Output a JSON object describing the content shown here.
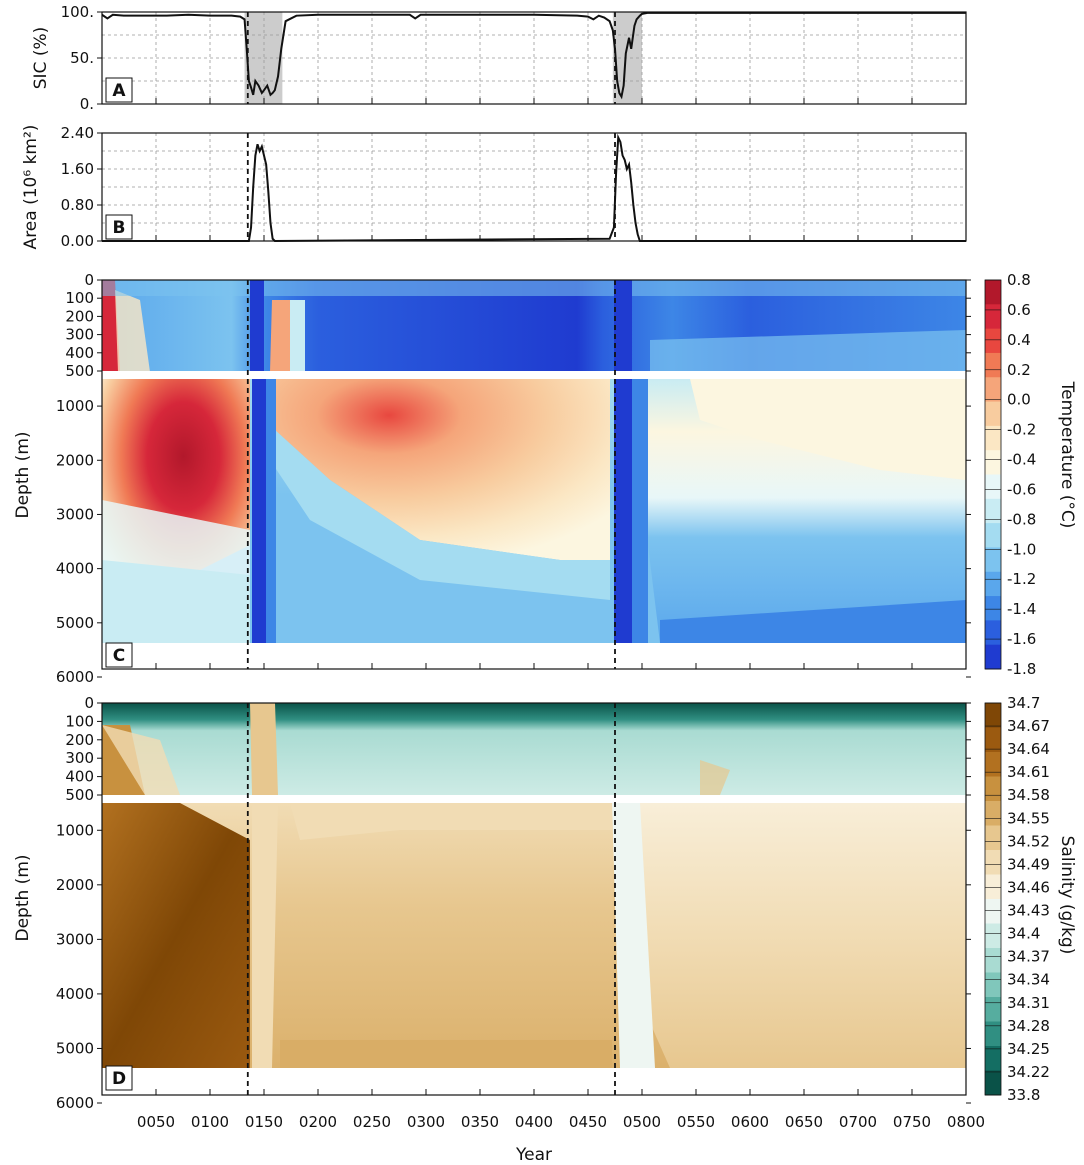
{
  "figure": {
    "x_axis_label": "Year",
    "x_ticks": [
      50,
      100,
      150,
      200,
      250,
      300,
      350,
      400,
      450,
      500,
      550,
      600,
      650,
      700,
      750,
      800
    ],
    "x_tick_labels": [
      "0050",
      "0100",
      "0150",
      "0200",
      "0250",
      "0300",
      "0350",
      "0400",
      "0450",
      "0500",
      "0550",
      "0600",
      "0650",
      "0700",
      "0750",
      "0800"
    ],
    "event_lines_year": [
      135,
      475
    ]
  },
  "chart_data": [
    {
      "type": "line",
      "panel": "A",
      "ylabel": "SIC (%)",
      "y_tick_labels": [
        "100.",
        "50.",
        "0."
      ],
      "ylim": [
        0,
        100
      ],
      "xlim": [
        0,
        800
      ],
      "grid": true,
      "shaded_ranges": [
        [
          132,
          167
        ],
        [
          473,
          500
        ]
      ],
      "x": [
        0,
        5,
        10,
        20,
        40,
        60,
        80,
        100,
        120,
        128,
        132,
        134,
        136,
        138,
        140,
        142,
        145,
        148,
        150,
        153,
        156,
        158,
        160,
        163,
        166,
        170,
        175,
        180,
        200,
        250,
        285,
        290,
        295,
        300,
        350,
        400,
        440,
        450,
        455,
        460,
        465,
        470,
        473,
        475,
        477,
        479,
        481,
        483,
        485,
        488,
        490,
        493,
        495,
        498,
        500,
        505,
        550,
        600,
        700,
        800
      ],
      "values": [
        97,
        93,
        97,
        96,
        96,
        96,
        97,
        96,
        96,
        95,
        92,
        60,
        25,
        18,
        10,
        25,
        20,
        12,
        15,
        20,
        10,
        12,
        15,
        30,
        60,
        90,
        93,
        96,
        97,
        97,
        97,
        93,
        97,
        97,
        97,
        97,
        96,
        95,
        92,
        96,
        94,
        90,
        80,
        60,
        25,
        12,
        8,
        20,
        55,
        72,
        60,
        85,
        92,
        96,
        98,
        99,
        99,
        99,
        99,
        99
      ]
    },
    {
      "type": "line",
      "panel": "B",
      "ylabel": "Area (10⁶ km²)",
      "y_tick_labels": [
        "2.40",
        "1.60",
        "0.80",
        "0.00"
      ],
      "ylim": [
        0,
        2.4
      ],
      "xlim": [
        0,
        800
      ],
      "grid": true,
      "x": [
        0,
        136,
        138,
        140,
        142,
        144,
        146,
        148,
        150,
        152,
        154,
        156,
        158,
        160,
        470,
        474,
        476,
        478,
        480,
        482,
        484,
        486,
        488,
        490,
        492,
        494,
        496,
        498,
        800
      ],
      "values": [
        0,
        0,
        0.3,
        1.2,
        1.9,
        2.15,
        2.0,
        2.1,
        1.9,
        1.7,
        1.1,
        0.4,
        0.05,
        0,
        0.05,
        0.3,
        1.5,
        2.3,
        2.2,
        1.9,
        1.8,
        1.6,
        1.7,
        1.3,
        0.8,
        0.4,
        0.15,
        0,
        0
      ]
    },
    {
      "type": "heatmap",
      "panel": "C",
      "xlabel": "",
      "ylabel": "Depth (m)",
      "y_tick_labels_upper": [
        "0",
        "100",
        "200",
        "300",
        "400",
        "500"
      ],
      "y_tick_labels_lower": [
        "1000",
        "2000",
        "3000",
        "4000",
        "5000",
        "6000"
      ],
      "colorbar_label": "Temperature (°C)",
      "colorbar_ticks": [
        "0.8",
        "0.6",
        "0.4",
        "0.2",
        "0.0",
        "-0.2",
        "-0.4",
        "-0.6",
        "-0.8",
        "-1.0",
        "-1.2",
        "-1.4",
        "-1.6",
        "-1.8"
      ],
      "range": [
        -1.8,
        0.8
      ]
    },
    {
      "type": "heatmap",
      "panel": "D",
      "xlabel": "Year",
      "ylabel": "Depth (m)",
      "y_tick_labels_upper": [
        "0",
        "100",
        "200",
        "300",
        "400",
        "500"
      ],
      "y_tick_labels_lower": [
        "1000",
        "2000",
        "3000",
        "4000",
        "5000",
        "6000"
      ],
      "colorbar_label": "Salinity (g/kg)",
      "colorbar_ticks": [
        "34.7",
        "34.67",
        "34.64",
        "34.61",
        "34.58",
        "34.55",
        "34.52",
        "34.49",
        "34.46",
        "34.43",
        "34.4",
        "34.37",
        "34.34",
        "34.31",
        "34.28",
        "34.25",
        "34.22",
        "33.8"
      ],
      "range": [
        33.8,
        34.7
      ]
    }
  ],
  "colors": {
    "shade": "#cccccc",
    "temp_scale": [
      "#b2182b",
      "#d6273a",
      "#e8473f",
      "#f07a55",
      "#f5a57a",
      "#f8cc9f",
      "#fbe7c4",
      "#fcf6e0",
      "#e8f7f8",
      "#c9ecf3",
      "#a4dcf1",
      "#7cc3ef",
      "#5aa7ec",
      "#3d86e6",
      "#2b5fde",
      "#1f3bd0"
    ],
    "sal_scale": [
      "#7f4706",
      "#9b5a10",
      "#b27120",
      "#c8913f",
      "#d9ad66",
      "#e7c78f",
      "#f1dcb4",
      "#f8eed8",
      "#eef6f2",
      "#cdebe5",
      "#a9dbd2",
      "#80c7bb",
      "#56ad9f",
      "#308f82",
      "#146e63",
      "#0a5248"
    ]
  }
}
